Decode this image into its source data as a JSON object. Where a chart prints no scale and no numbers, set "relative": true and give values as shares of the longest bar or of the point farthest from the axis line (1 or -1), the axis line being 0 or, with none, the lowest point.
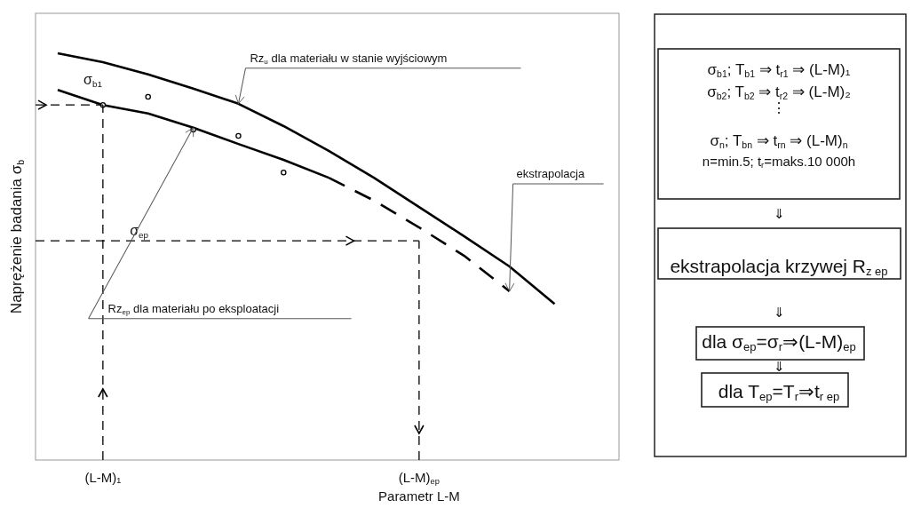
{
  "chart_data": [
    {
      "type": "line",
      "relative": true,
      "xlabel": "Parametr L-M",
      "ylabel": "Naprężenie badania σ$_{b}$",
      "categories": [
        null,
        "(L-M)₁",
        null,
        null,
        null,
        null,
        null,
        null,
        "(L-M)$_{ep}$",
        null,
        null,
        null
      ],
      "series": [
        {
          "type": "line",
          "color": "#000000",
          "line_style": "solid",
          "values": [
            1.0,
            0.978,
            0.948,
            0.913,
            0.876,
            0.821,
            0.76,
            0.694,
            0.622,
            0.55,
            0.476,
            0.384
          ]
        },
        {
          "type": "line",
          "color": "#000000",
          "line_style": "solid",
          "values": [
            0.91,
            0.873,
            0.852,
            0.817,
            0.777,
            0.738,
            0.694,
            null,
            null,
            null,
            null,
            null
          ]
        },
        {
          "type": "line",
          "color": "#000000",
          "line_style": "dashed",
          "values": [
            null,
            null,
            null,
            null,
            null,
            null,
            0.694,
            0.638,
            0.572,
            0.502,
            0.415,
            null
          ]
        },
        {
          "type": "scatter",
          "color": "#000000",
          "marker": "circle",
          "values": [
            null,
            0.873,
            0.893,
            0.812,
            0.797,
            0.707,
            null,
            null,
            null,
            null,
            null,
            null
          ]
        }
      ],
      "ref_lines": [
        {
          "axis": "y",
          "value": 0.873,
          "line_style": "dashed",
          "color": "#000000"
        },
        {
          "axis": "x",
          "value": "(L-M)₁",
          "line_style": "dashed",
          "color": "#000000"
        },
        {
          "axis": "y",
          "value": 0.539,
          "label": "σ$_{ep}$",
          "line_style": "dashed",
          "color": "#000000"
        },
        {
          "axis": "x",
          "value": "(L-M)$_{ep}$",
          "line_style": "dashed",
          "color": "#000000"
        }
      ],
      "annotations": [
        "σ$_{b1}$",
        "Rz$_{u}$ dla materiału w stanie wyjściowym",
        "ekstrapolacja",
        "Rz$_{ep}$ dla materiału po eksploatacji"
      ]
    },
    {
      "type": "other",
      "annotations": [
        "σ$_{b1}$; T$_{b1}$ ⇒ t$_{r1}$ ⇒ (L-M)₁",
        "σ$_{b2}$; T$_{b2}$ ⇒ t$_{r2}$ ⇒ (L-M)₂",
        "⋮",
        "σ$_{n}$; T$_{bn}$ ⇒ t$_{rn}$ ⇒ (L-M)$_{n}$",
        "n=min.5; t$_{r}$=maks.10 000h",
        "⇓",
        "ekstrapolacja krzywej R$_{z ep}$",
        "⇓",
        "dla σ$_{ep}$=σ$_{r}$⇒(L-M)$_{ep}$",
        "⇓",
        "dla T$_{ep}$=T$_{r}$⇒t$_{r ep}$"
      ]
    }
  ]
}
